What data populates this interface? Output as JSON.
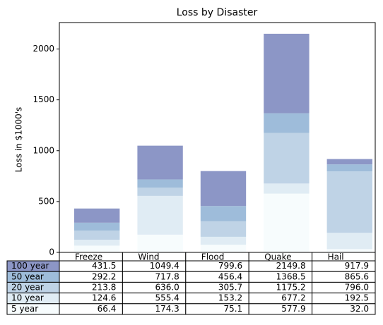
{
  "chart_data": {
    "type": "bar",
    "title": "Loss by Disaster",
    "y_label": "Loss in $1000's",
    "categories": [
      "Freeze",
      "Wind",
      "Flood",
      "Quake",
      "Hail"
    ],
    "ylim": [
      0,
      2260
    ],
    "yticks": [
      0,
      500,
      1000,
      1500,
      2000
    ],
    "series": [
      {
        "name": "5 year",
        "color": "#f7fcfd",
        "values": [
          66.4,
          174.3,
          75.1,
          577.9,
          32.0
        ]
      },
      {
        "name": "10 year",
        "color": "#e0ecf4",
        "values": [
          58.2,
          381.1,
          78.1,
          99.3,
          160.5
        ]
      },
      {
        "name": "20 year",
        "color": "#bfd3e6",
        "values": [
          89.2,
          80.6,
          152.5,
          498.0,
          603.5
        ]
      },
      {
        "name": "50 year",
        "color": "#9ebcda",
        "values": [
          78.4,
          81.8,
          150.7,
          193.3,
          69.6
        ]
      },
      {
        "name": "100 year",
        "color": "#8c96c6",
        "values": [
          139.3,
          331.6,
          343.2,
          781.3,
          52.3
        ]
      }
    ],
    "table": {
      "rows": [
        [
          "431.5",
          "1049.4",
          "799.6",
          "2149.8",
          "917.9"
        ],
        [
          "292.2",
          "717.8",
          "456.4",
          "1368.5",
          "865.6"
        ],
        [
          "213.8",
          "636.0",
          "305.7",
          "1175.2",
          "796.0"
        ],
        [
          "124.6",
          "555.4",
          "153.2",
          "677.2",
          "192.5"
        ],
        [
          "66.4",
          "174.3",
          "75.1",
          "577.9",
          "32.0"
        ]
      ]
    }
  }
}
